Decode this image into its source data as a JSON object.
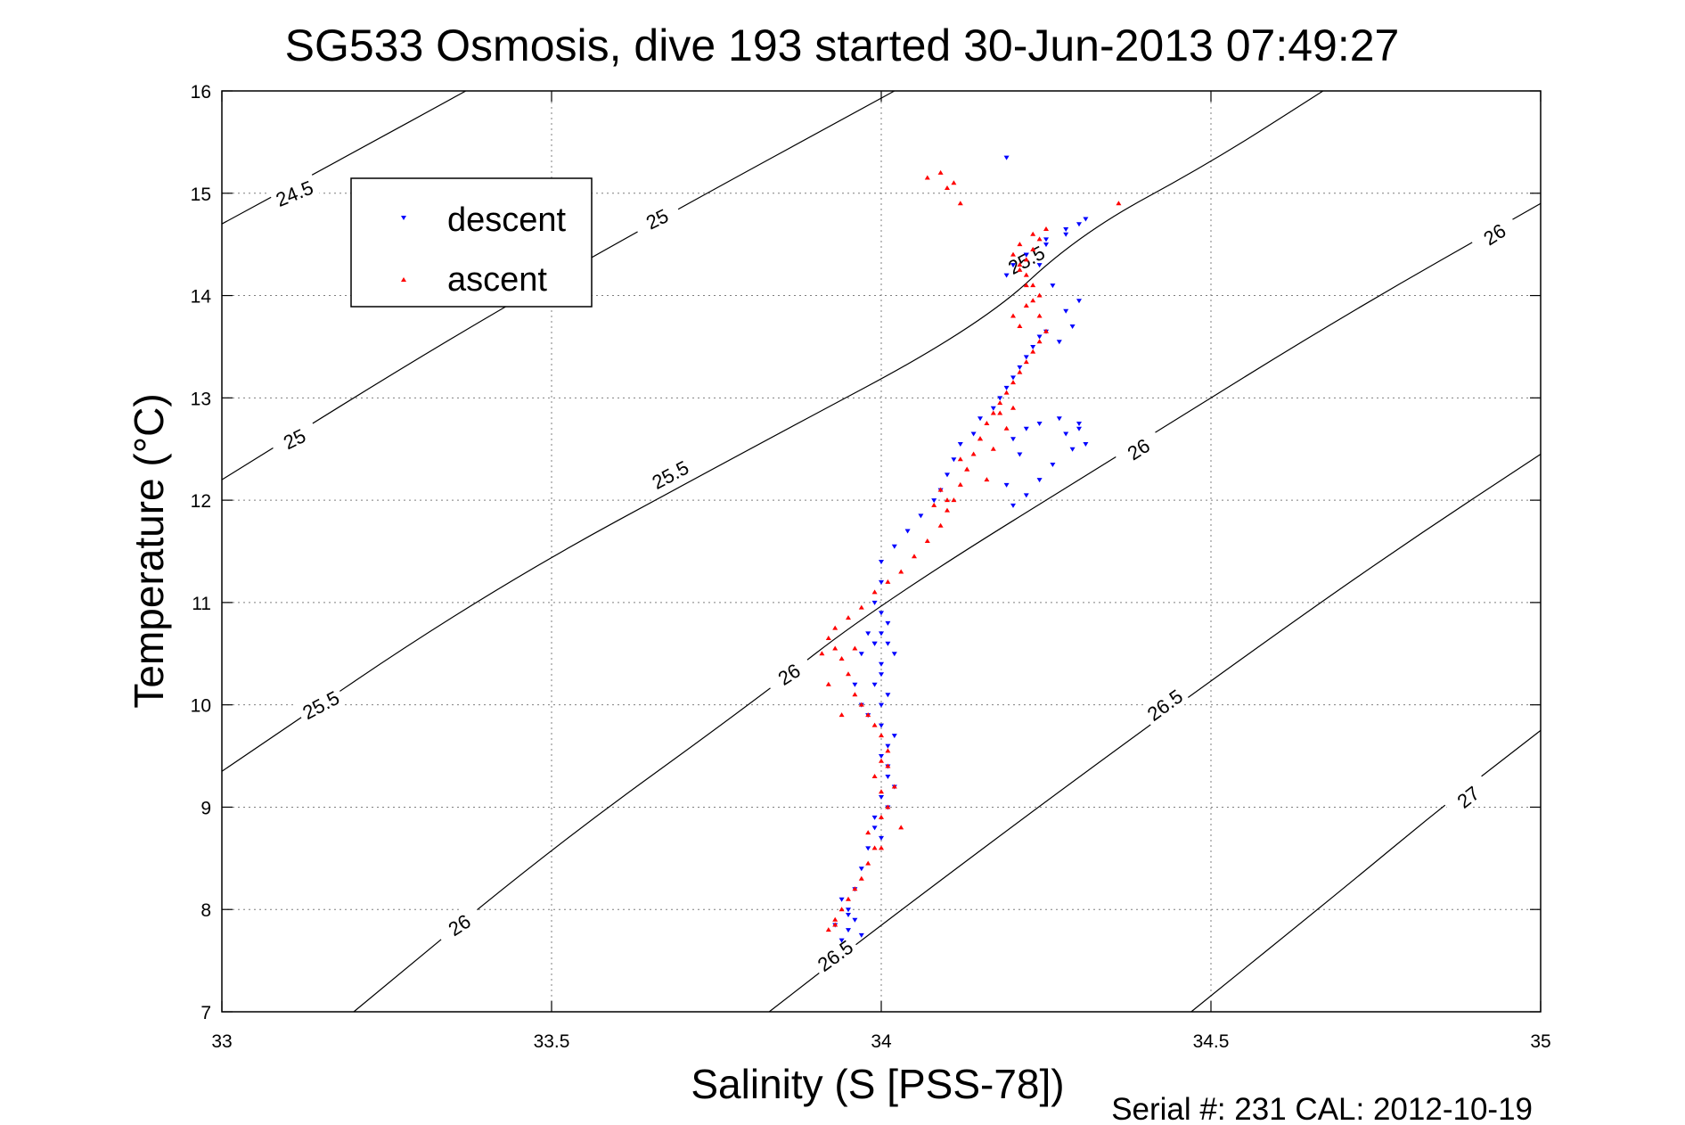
{
  "chart_data": {
    "type": "scatter",
    "title": "SG533 Osmosis, dive 193 started 30-Jun-2013 07:49:27",
    "xlabel": "Salinity (S [PSS-78])",
    "ylabel": "Temperature (°C)",
    "xlim": [
      33,
      35
    ],
    "ylim": [
      7,
      16
    ],
    "xticks": [
      "33",
      "33.5",
      "34",
      "34.5",
      "35"
    ],
    "yticks": [
      "7",
      "8",
      "9",
      "10",
      "11",
      "12",
      "13",
      "14",
      "15",
      "16"
    ],
    "grid": true,
    "legend_position": "top-left",
    "footer": "Serial #: 231  CAL: 2012-10-19",
    "series": [
      {
        "name": "descent",
        "color": "#0000ff",
        "marker": "triangle-down",
        "x": [
          33.94,
          33.95,
          33.96,
          33.95,
          33.94,
          33.93,
          33.95,
          33.97,
          33.96,
          33.97,
          33.98,
          33.99,
          34.0,
          33.99,
          34.0,
          34.01,
          34.02,
          34.01,
          34.0,
          34.01,
          34.02,
          34.01,
          34.0,
          34.0,
          34.01,
          34.0,
          33.99,
          34.0,
          33.99,
          33.98,
          33.97,
          33.96,
          33.97,
          33.98,
          33.99,
          34.0,
          34.01,
          34.02,
          34.01,
          34.0,
          33.99,
          34.0,
          34.0,
          34.02,
          34.04,
          34.06,
          34.08,
          34.09,
          34.1,
          34.11,
          34.12,
          34.14,
          34.15,
          34.17,
          34.18,
          34.19,
          34.2,
          34.21,
          34.22,
          34.23,
          34.24,
          34.25,
          34.27,
          34.29,
          34.28,
          34.3,
          34.26,
          34.24,
          34.22,
          34.25,
          34.28,
          34.3,
          34.31,
          34.28,
          34.25,
          34.22,
          34.2,
          34.19,
          34.2,
          34.22,
          34.24,
          34.27,
          34.3,
          34.28,
          34.3,
          34.31,
          34.29,
          34.26,
          34.24,
          34.22,
          34.2,
          34.19,
          34.21,
          34.19
        ],
        "y": [
          7.7,
          7.8,
          7.9,
          8.0,
          8.1,
          7.85,
          7.95,
          7.75,
          8.2,
          8.4,
          8.6,
          8.8,
          8.7,
          8.9,
          9.1,
          9.0,
          9.2,
          9.3,
          9.5,
          9.6,
          9.7,
          9.4,
          9.8,
          10.0,
          10.1,
          10.3,
          10.2,
          10.4,
          10.6,
          10.7,
          10.5,
          10.2,
          10.0,
          9.9,
          10.6,
          10.7,
          10.6,
          10.5,
          10.8,
          10.9,
          11.0,
          11.2,
          11.4,
          11.55,
          11.7,
          11.85,
          12.0,
          12.1,
          12.25,
          12.4,
          12.55,
          12.65,
          12.8,
          12.9,
          13.0,
          13.1,
          13.2,
          13.3,
          13.4,
          13.5,
          13.6,
          13.65,
          13.55,
          13.7,
          13.85,
          13.95,
          14.1,
          14.3,
          14.4,
          14.55,
          14.65,
          14.7,
          14.75,
          14.6,
          14.5,
          14.4,
          14.3,
          14.2,
          12.6,
          12.7,
          12.75,
          12.8,
          12.7,
          12.65,
          12.75,
          12.55,
          12.5,
          12.35,
          12.2,
          12.05,
          11.95,
          12.15,
          12.45,
          15.35
        ],
        "x_extra": [],
        "y_extra": []
      },
      {
        "name": "ascent",
        "color": "#ff0000",
        "marker": "triangle-up",
        "x": [
          33.92,
          33.93,
          33.94,
          33.95,
          33.96,
          33.97,
          33.98,
          33.99,
          33.98,
          34.0,
          34.01,
          34.0,
          33.99,
          34.0,
          34.01,
          34.0,
          33.99,
          33.98,
          33.97,
          33.96,
          33.95,
          33.94,
          33.93,
          33.92,
          33.93,
          33.95,
          33.97,
          33.99,
          34.01,
          34.03,
          34.05,
          34.07,
          34.09,
          34.1,
          34.11,
          34.12,
          34.13,
          34.14,
          34.15,
          34.16,
          34.17,
          34.18,
          34.19,
          34.2,
          34.21,
          34.22,
          34.23,
          34.24,
          34.25,
          34.24,
          34.23,
          34.22,
          34.21,
          34.22,
          34.23,
          34.24,
          34.25,
          34.23,
          34.21,
          34.2,
          34.21,
          34.22,
          34.23,
          34.24,
          34.22,
          34.2,
          34.21,
          34.09,
          34.1,
          34.08,
          34.12,
          34.15,
          34.18,
          34.19,
          34.17,
          34.13,
          34.16,
          34.2,
          34.09,
          34.07,
          34.11,
          34.1,
          34.12,
          33.93,
          33.94,
          33.96,
          34.01,
          34.02,
          34.0,
          34.03,
          34.36,
          33.91,
          33.92
        ],
        "y": [
          7.8,
          7.9,
          8.0,
          8.1,
          8.2,
          8.3,
          8.45,
          8.6,
          8.75,
          8.9,
          9.0,
          9.15,
          9.3,
          9.45,
          9.55,
          9.7,
          9.8,
          9.9,
          10.0,
          10.1,
          10.3,
          10.45,
          10.55,
          10.65,
          10.75,
          10.85,
          10.95,
          11.1,
          11.2,
          11.3,
          11.45,
          11.6,
          11.75,
          11.9,
          12.0,
          12.15,
          12.3,
          12.45,
          12.6,
          12.75,
          12.85,
          12.95,
          13.05,
          13.15,
          13.25,
          13.35,
          13.45,
          13.55,
          13.65,
          13.8,
          13.95,
          14.1,
          14.25,
          14.35,
          14.45,
          14.55,
          14.65,
          14.6,
          14.5,
          14.4,
          14.3,
          14.2,
          14.1,
          14.0,
          13.9,
          13.8,
          13.7,
          12.1,
          12.0,
          11.95,
          12.4,
          12.6,
          12.85,
          12.7,
          12.5,
          12.3,
          12.2,
          12.9,
          15.2,
          15.15,
          15.1,
          15.05,
          14.9,
          7.85,
          9.9,
          10.55,
          9.4,
          9.2,
          8.6,
          8.8,
          14.9,
          10.5,
          10.2
        ],
        "x_extra": [],
        "y_extra": []
      }
    ],
    "contours": [
      {
        "level": "24.5",
        "points": [
          [
            33.0,
            14.7
          ],
          [
            33.2,
            15.4
          ],
          [
            33.37,
            16.0
          ]
        ],
        "labels": [
          {
            "text": "24.5",
            "x": 33.11,
            "y": 15.0,
            "angle": -22
          }
        ]
      },
      {
        "level": "25",
        "points": [
          [
            33.0,
            12.2
          ],
          [
            33.35,
            13.6
          ],
          [
            33.65,
            14.7
          ],
          [
            34.02,
            16.0
          ]
        ],
        "labels": [
          {
            "text": "25",
            "x": 33.11,
            "y": 12.6,
            "angle": -26
          },
          {
            "text": "25",
            "x": 33.66,
            "y": 14.75,
            "angle": -26
          }
        ]
      },
      {
        "level": "25.5",
        "points": [
          [
            33.0,
            9.35
          ],
          [
            33.4,
            11.1
          ],
          [
            33.8,
            12.5
          ],
          [
            34.15,
            13.7
          ],
          [
            34.3,
            14.6
          ],
          [
            34.5,
            15.3
          ],
          [
            34.67,
            16.0
          ]
        ],
        "labels": [
          {
            "text": "25.5",
            "x": 33.15,
            "y": 10.0,
            "angle": -28
          },
          {
            "text": "25.5",
            "x": 33.68,
            "y": 12.25,
            "angle": -28
          },
          {
            "text": "25.5",
            "x": 34.22,
            "y": 14.35,
            "angle": -28
          }
        ]
      },
      {
        "level": "26",
        "points": [
          [
            33.2,
            7.0
          ],
          [
            33.5,
            8.6
          ],
          [
            33.8,
            10.0
          ],
          [
            34.0,
            11.0
          ],
          [
            34.4,
            12.6
          ],
          [
            34.7,
            13.8
          ],
          [
            35.0,
            14.9
          ]
        ],
        "labels": [
          {
            "text": "26",
            "x": 33.36,
            "y": 7.85,
            "angle": -33
          },
          {
            "text": "26",
            "x": 33.86,
            "y": 10.3,
            "angle": -33
          },
          {
            "text": "26",
            "x": 34.39,
            "y": 12.5,
            "angle": -33
          },
          {
            "text": "26",
            "x": 34.93,
            "y": 14.6,
            "angle": -33
          }
        ]
      },
      {
        "level": "26.5",
        "points": [
          [
            33.83,
            7.0
          ],
          [
            34.0,
            7.85
          ],
          [
            34.3,
            9.3
          ],
          [
            34.6,
            10.7
          ],
          [
            34.8,
            11.6
          ],
          [
            35.0,
            12.45
          ]
        ],
        "labels": [
          {
            "text": "26.5",
            "x": 33.93,
            "y": 7.55,
            "angle": -36
          },
          {
            "text": "26.5",
            "x": 34.43,
            "y": 10.0,
            "angle": -36
          }
        ]
      },
      {
        "level": "27",
        "points": [
          [
            34.47,
            7.0
          ],
          [
            34.7,
            8.2
          ],
          [
            34.85,
            9.0
          ],
          [
            35.0,
            9.75
          ]
        ],
        "labels": [
          {
            "text": "27",
            "x": 34.89,
            "y": 9.1,
            "angle": -38
          }
        ]
      }
    ]
  },
  "legend": {
    "descent_label": "descent",
    "ascent_label": "ascent"
  }
}
